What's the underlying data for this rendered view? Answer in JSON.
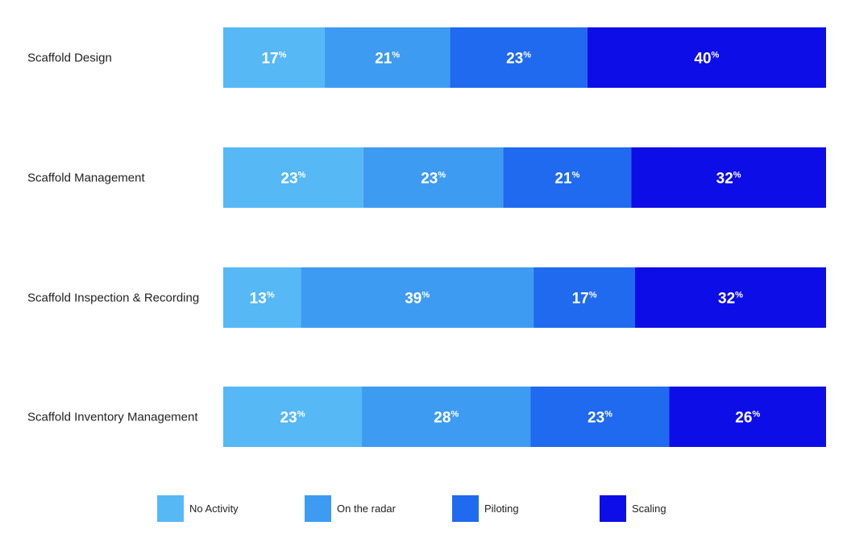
{
  "chart_data": {
    "type": "bar",
    "orientation": "horizontal",
    "stacked": true,
    "percent_stacked": true,
    "categories": [
      "Scaffold Design",
      "Scaffold Management",
      "Scaffold Inspection & Recording",
      "Scaffold Inventory Management"
    ],
    "series": [
      {
        "name": "No Activity",
        "color": "#56b8f5",
        "values": [
          17,
          23,
          13,
          23
        ]
      },
      {
        "name": "On the radar",
        "color": "#3e9bf2",
        "values": [
          21,
          23,
          39,
          28
        ]
      },
      {
        "name": "Piloting",
        "color": "#1f6aee",
        "values": [
          23,
          21,
          17,
          23
        ]
      },
      {
        "name": "Scaling",
        "color": "#0d0de8",
        "values": [
          40,
          32,
          32,
          26
        ]
      }
    ],
    "value_suffix": "%",
    "legend_position": "bottom",
    "grid": false
  }
}
